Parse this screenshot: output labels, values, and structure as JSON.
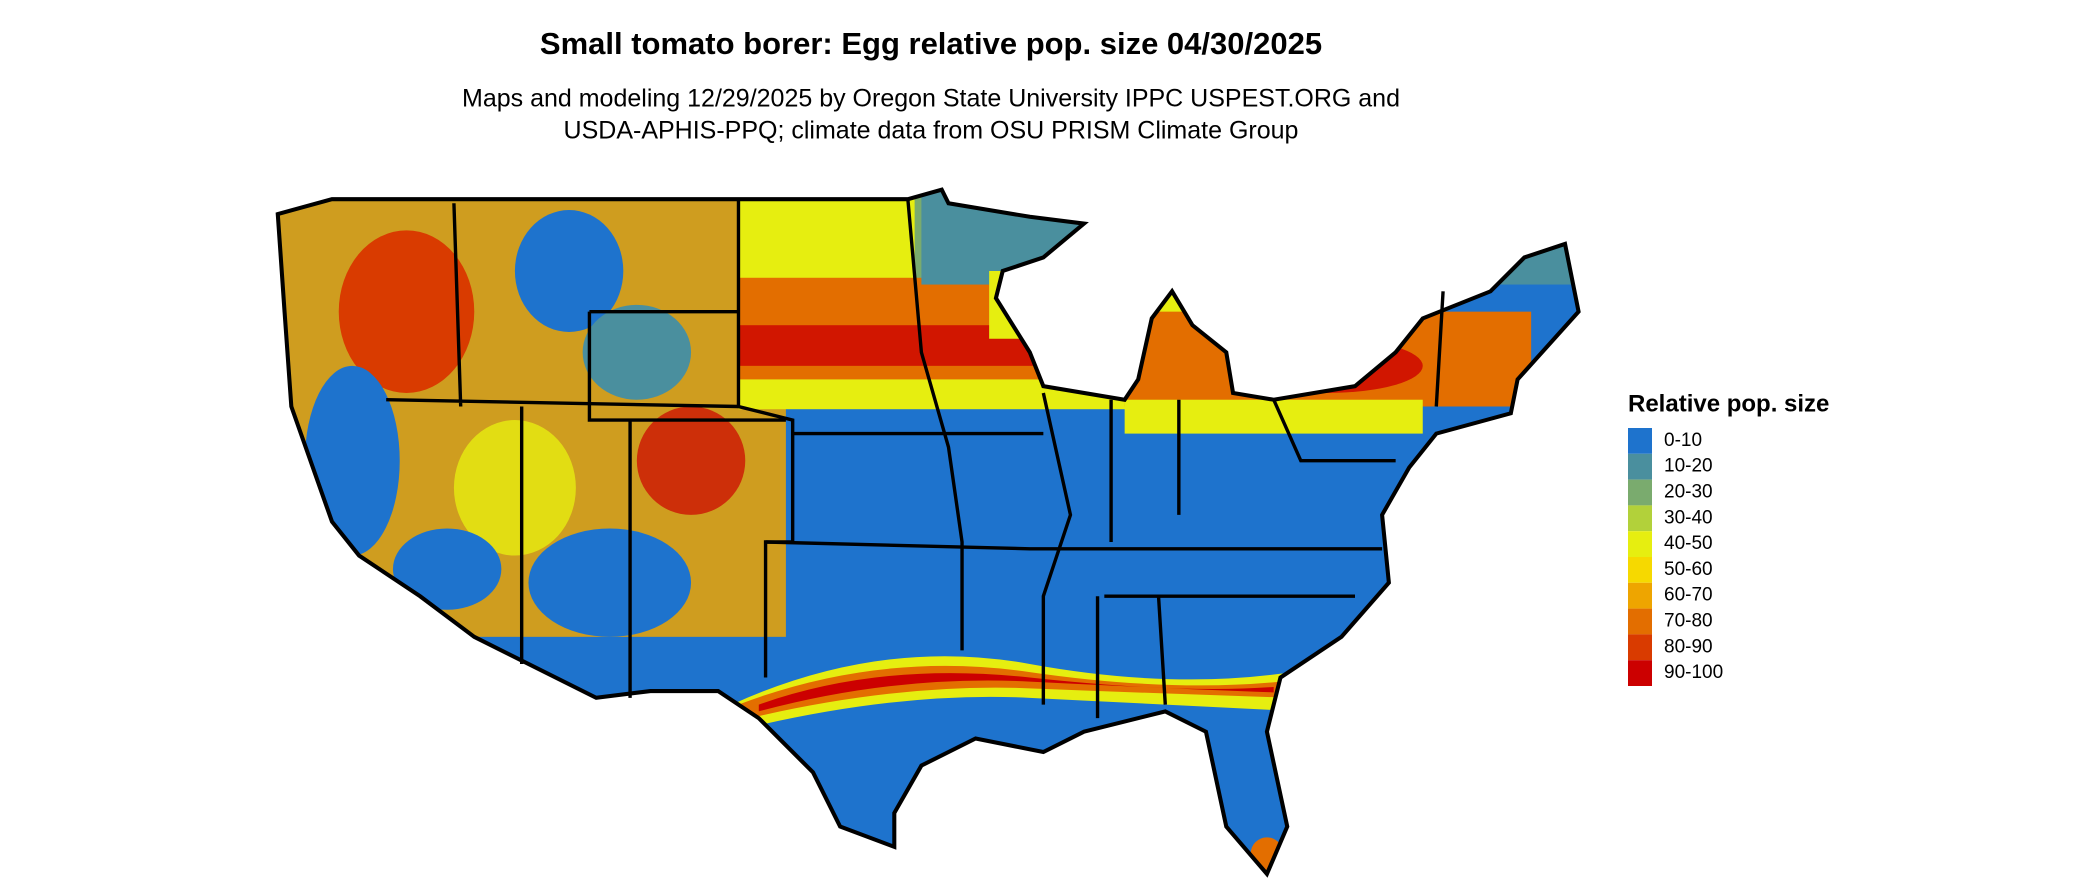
{
  "title": "Small tomato borer: Egg relative pop. size 04/30/2025",
  "subtitle": [
    "Maps and modeling 12/29/2025 by Oregon State University IPPC USPEST.ORG and",
    "USDA-APHIS-PPQ; climate data from OSU PRISM Climate Group"
  ],
  "legend": {
    "title": "Relative pop. size",
    "items": [
      {
        "label": "0-10",
        "color": "#1e73cd"
      },
      {
        "label": "10-20",
        "color": "#4a8f9e"
      },
      {
        "label": "20-30",
        "color": "#7aab6e"
      },
      {
        "label": "30-40",
        "color": "#b2d13a"
      },
      {
        "label": "40-50",
        "color": "#e6ee10"
      },
      {
        "label": "50-60",
        "color": "#f6d900"
      },
      {
        "label": "60-70",
        "color": "#eea500"
      },
      {
        "label": "70-80",
        "color": "#e36e00"
      },
      {
        "label": "80-90",
        "color": "#d93b00"
      },
      {
        "label": "90-100",
        "color": "#cc0000"
      }
    ]
  }
}
